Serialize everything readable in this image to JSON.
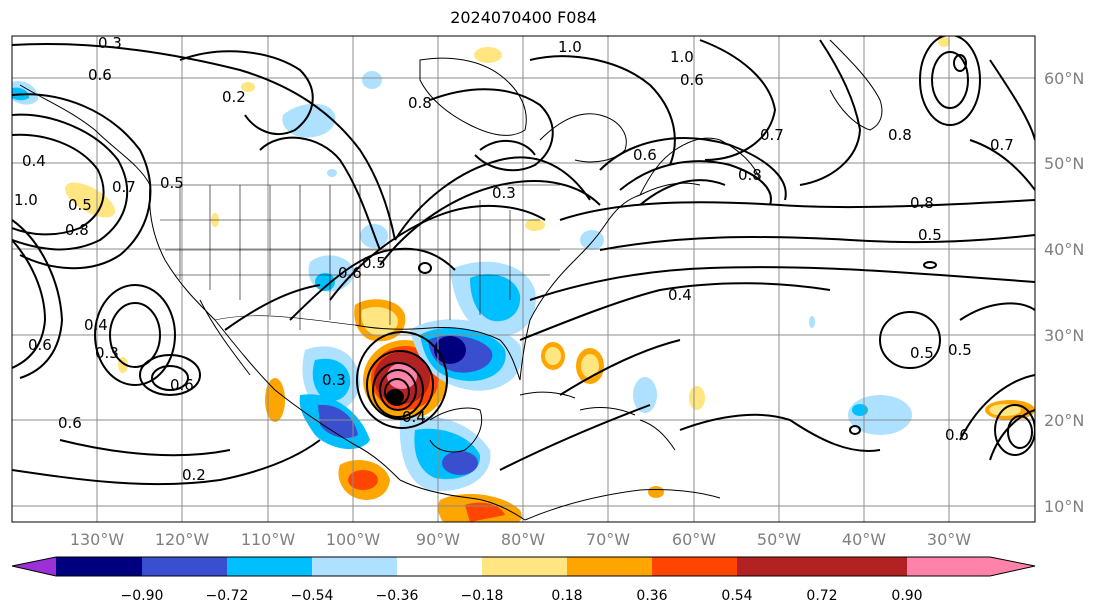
{
  "title": "2024070400 F084",
  "latitude_labels": [
    "60°N",
    "50°N",
    "40°N",
    "30°N",
    "20°N",
    "10°N"
  ],
  "longitude_labels": [
    "130°W",
    "120°W",
    "110°W",
    "100°W",
    "90°W",
    "80°W",
    "70°W",
    "60°W",
    "50°W",
    "40°W",
    "30°W"
  ],
  "colorbar": {
    "tick_labels": [
      "−0.90",
      "−0.72",
      "−0.54",
      "−0.36",
      "−0.18",
      "0.18",
      "0.36",
      "0.54",
      "0.72",
      "0.90"
    ],
    "colors": [
      "#9b30d9",
      "#00007f",
      "#3a4fd0",
      "#00bfff",
      "#aee0ff",
      "#ffffff",
      "#ffe680",
      "#ffa500",
      "#ff4500",
      "#b22222",
      "#ff82ab"
    ]
  },
  "contour_labels": [
    "0.3",
    "0.6",
    "0.2",
    "0.4",
    "1.0",
    "0.7",
    "0.5",
    "0.8",
    "0.3",
    "1.0",
    "0.6",
    "0.8",
    "0.5",
    "0.6",
    "0.8",
    "1.0",
    "0.7",
    "0.4",
    "0.8",
    "0.5",
    "0.4",
    "0.6",
    "0.5",
    "0.6",
    "0.3",
    "0.5",
    "0.6",
    "0.6",
    "0.3",
    "0.4",
    "0.2",
    "0.6",
    "0.8",
    "0.7",
    "0.5"
  ]
}
